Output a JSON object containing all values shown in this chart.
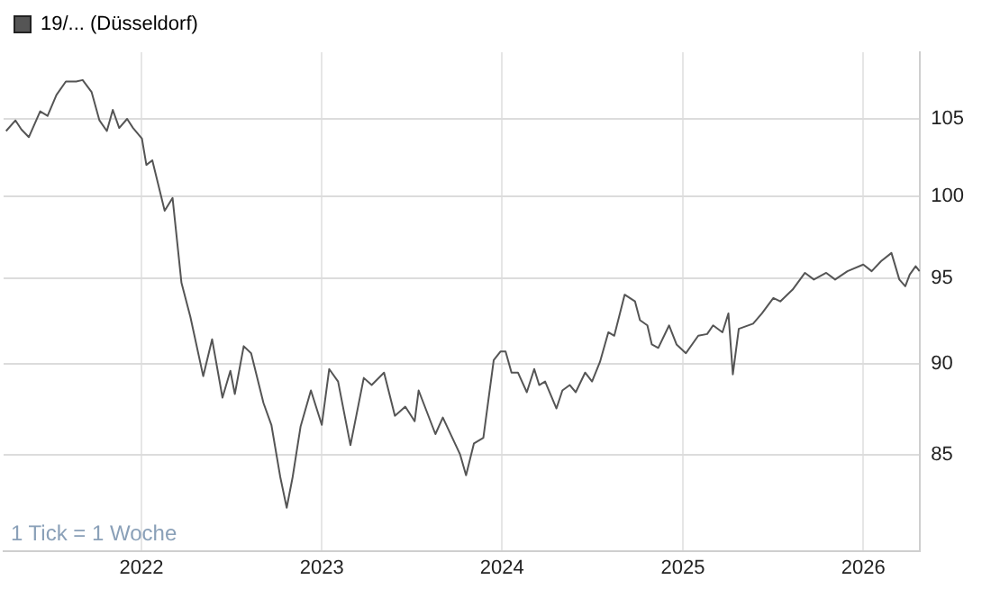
{
  "chart_data": {
    "type": "line",
    "legend": "top left",
    "grid": true,
    "log": true,
    "marker": "none",
    "line_style": "solid",
    "annotations": [
      "1 Tick = 1 Woche"
    ],
    "xlim": [
      "2021-03-28",
      "2026-04-26"
    ],
    "xticks": [
      {
        "value": "2022-01-01",
        "label": "2022"
      },
      {
        "value": "2023-01-01",
        "label": "2023"
      },
      {
        "value": "2024-01-01",
        "label": "2024"
      },
      {
        "value": "2025-01-01",
        "label": "2025"
      },
      {
        "value": "2026-01-01",
        "label": "2026"
      }
    ],
    "ylim": [
      80,
      109.5
    ],
    "yticks": [
      85,
      90,
      95,
      100,
      105
    ],
    "series": [
      {
        "name": "19/... (Düsseldorf)",
        "color": "#555555",
        "x": [
          "2021-04-02",
          "2021-04-21",
          "2021-05-03",
          "2021-05-18",
          "2021-06-10",
          "2021-06-25",
          "2021-07-13",
          "2021-08-01",
          "2021-08-22",
          "2021-09-04",
          "2021-09-22",
          "2021-10-08",
          "2021-10-23",
          "2021-11-04",
          "2021-11-17",
          "2021-12-03",
          "2021-12-15",
          "2022-01-02",
          "2022-01-11",
          "2022-01-23",
          "2022-02-17",
          "2022-03-05",
          "2022-03-23",
          "2022-04-10",
          "2022-05-06",
          "2022-05-24",
          "2022-06-14",
          "2022-06-30",
          "2022-07-09",
          "2022-07-27",
          "2022-08-11",
          "2022-09-05",
          "2022-09-21",
          "2022-10-09",
          "2022-10-22",
          "2022-11-03",
          "2022-11-19",
          "2022-12-10",
          "2023-01-01",
          "2023-01-16",
          "2023-02-03",
          "2023-02-28",
          "2023-03-27",
          "2023-04-12",
          "2023-05-07",
          "2023-05-29",
          "2023-06-19",
          "2023-07-08",
          "2023-07-16",
          "2023-08-19",
          "2023-09-03",
          "2023-10-08",
          "2023-10-20",
          "2023-11-05",
          "2023-11-24",
          "2023-12-15",
          "2023-12-29",
          "2024-01-08",
          "2024-01-20",
          "2024-02-02",
          "2024-02-20",
          "2024-03-06",
          "2024-03-16",
          "2024-03-28",
          "2024-04-20",
          "2024-05-02",
          "2024-05-17",
          "2024-05-29",
          "2024-06-17",
          "2024-07-01",
          "2024-07-17",
          "2024-08-03",
          "2024-08-15",
          "2024-09-05",
          "2024-09-26",
          "2024-10-06",
          "2024-10-21",
          "2024-10-30",
          "2024-11-12",
          "2024-12-04",
          "2024-12-19",
          "2025-01-07",
          "2025-02-01",
          "2025-02-19",
          "2025-03-03",
          "2025-03-22",
          "2025-04-03",
          "2025-04-12",
          "2025-04-24",
          "2025-05-23",
          "2025-06-10",
          "2025-07-03",
          "2025-07-17",
          "2025-08-11",
          "2025-09-05",
          "2025-09-23",
          "2025-10-18",
          "2025-11-05",
          "2025-11-30",
          "2026-01-01",
          "2026-01-18",
          "2026-02-06",
          "2026-02-27",
          "2026-03-15",
          "2026-03-27",
          "2026-04-05",
          "2026-04-17",
          "2026-04-25"
        ],
        "values": [
          104.2,
          104.9,
          104.3,
          103.8,
          105.5,
          105.2,
          106.6,
          107.5,
          107.5,
          107.6,
          106.8,
          104.9,
          104.2,
          105.6,
          104.4,
          105.0,
          104.4,
          103.7,
          102.0,
          102.3,
          99.1,
          99.9,
          94.7,
          92.7,
          89.3,
          91.4,
          88.1,
          89.6,
          88.3,
          91.0,
          90.6,
          87.8,
          86.6,
          83.8,
          82.2,
          83.8,
          86.5,
          88.5,
          86.6,
          89.7,
          89.0,
          85.5,
          89.2,
          88.8,
          89.5,
          87.1,
          87.6,
          86.8,
          88.5,
          86.1,
          87.0,
          85.0,
          83.9,
          85.6,
          85.9,
          90.2,
          90.7,
          90.7,
          89.5,
          89.5,
          88.4,
          89.7,
          88.8,
          89.0,
          87.5,
          88.5,
          88.8,
          88.4,
          89.5,
          89.0,
          90.1,
          91.8,
          91.6,
          94.0,
          93.6,
          92.5,
          92.2,
          91.1,
          90.9,
          92.2,
          91.1,
          90.6,
          91.6,
          91.7,
          92.2,
          91.8,
          92.9,
          89.4,
          92.0,
          92.3,
          92.9,
          93.8,
          93.6,
          94.3,
          95.3,
          94.9,
          95.3,
          94.9,
          95.4,
          95.8,
          95.4,
          96.0,
          96.5,
          94.9,
          94.5,
          95.2,
          95.7,
          95.4
        ]
      }
    ]
  }
}
